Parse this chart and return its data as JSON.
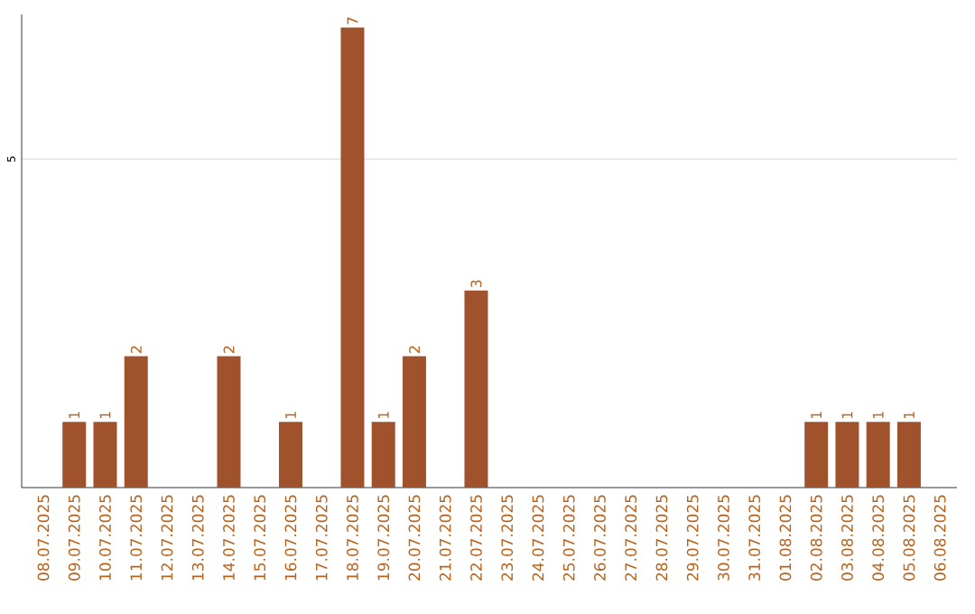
{
  "chart_data": {
    "type": "bar",
    "color": "#a0522d",
    "categories": [
      "08.07.2025",
      "09.07.2025",
      "10.07.2025",
      "11.07.2025",
      "12.07.2025",
      "13.07.2025",
      "14.07.2025",
      "15.07.2025",
      "16.07.2025",
      "17.07.2025",
      "18.07.2025",
      "19.07.2025",
      "20.07.2025",
      "21.07.2025",
      "22.07.2025",
      "23.07.2025",
      "24.07.2025",
      "25.07.2025",
      "26.07.2025",
      "27.07.2025",
      "28.07.2025",
      "29.07.2025",
      "30.07.2025",
      "31.07.2025",
      "01.08.2025",
      "02.08.2025",
      "03.08.2025",
      "04.08.2025",
      "05.08.2025",
      "06.08.2025"
    ],
    "values": [
      0,
      1,
      1,
      2,
      0,
      0,
      2,
      0,
      1,
      0,
      7,
      1,
      2,
      0,
      3,
      0,
      0,
      0,
      0,
      0,
      0,
      0,
      0,
      0,
      0,
      1,
      1,
      1,
      1,
      0
    ],
    "value_labels": [
      null,
      "1",
      "1",
      "2",
      null,
      null,
      "2",
      null,
      "1",
      null,
      "7",
      "1",
      "2",
      null,
      "3",
      null,
      null,
      null,
      null,
      null,
      null,
      null,
      null,
      null,
      null,
      "1",
      "1",
      "1",
      "1",
      null
    ],
    "ylim": [
      0,
      7.2
    ],
    "yticks": [
      5
    ],
    "grid": "y"
  }
}
